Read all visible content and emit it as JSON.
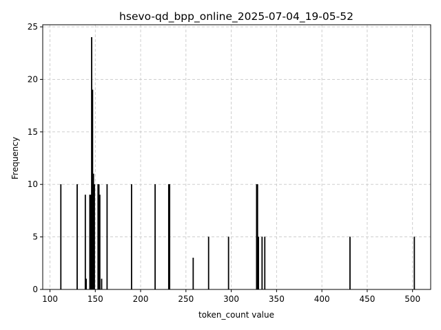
{
  "chart_data": {
    "type": "bar",
    "title": "hsevo-qd_bpp_online_2025-07-04_19-05-52",
    "xlabel": "token_count value",
    "ylabel": "Frequency",
    "xlim": [
      92,
      520
    ],
    "ylim": [
      0,
      25.2
    ],
    "xticks": [
      100,
      150,
      200,
      250,
      300,
      350,
      400,
      450,
      500
    ],
    "yticks": [
      0,
      5,
      10,
      15,
      20,
      25
    ],
    "grid": true,
    "bar_color": "#000000",
    "bars": [
      {
        "x": 112,
        "value": 10
      },
      {
        "x": 130,
        "value": 10
      },
      {
        "x": 139,
        "value": 9
      },
      {
        "x": 140,
        "value": 1
      },
      {
        "x": 144,
        "value": 9
      },
      {
        "x": 145,
        "value": 9
      },
      {
        "x": 146,
        "value": 24
      },
      {
        "x": 147,
        "value": 19
      },
      {
        "x": 148,
        "value": 11
      },
      {
        "x": 149,
        "value": 10
      },
      {
        "x": 153,
        "value": 10
      },
      {
        "x": 154,
        "value": 10
      },
      {
        "x": 155,
        "value": 9
      },
      {
        "x": 157,
        "value": 1
      },
      {
        "x": 163,
        "value": 10
      },
      {
        "x": 190,
        "value": 10
      },
      {
        "x": 216,
        "value": 10
      },
      {
        "x": 231,
        "value": 10
      },
      {
        "x": 232,
        "value": 10
      },
      {
        "x": 258,
        "value": 3
      },
      {
        "x": 275,
        "value": 5
      },
      {
        "x": 297,
        "value": 5
      },
      {
        "x": 328,
        "value": 10
      },
      {
        "x": 329,
        "value": 10
      },
      {
        "x": 330,
        "value": 5
      },
      {
        "x": 334,
        "value": 5
      },
      {
        "x": 337,
        "value": 5
      },
      {
        "x": 431,
        "value": 5
      },
      {
        "x": 502,
        "value": 5
      }
    ]
  }
}
